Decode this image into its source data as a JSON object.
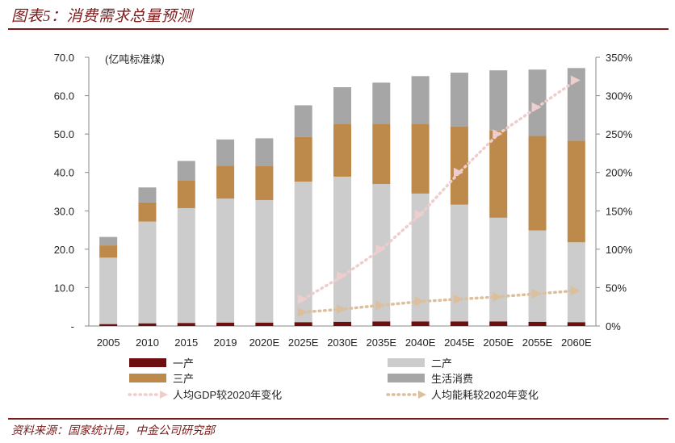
{
  "header": {
    "title": "图表5：消费需求总量预测"
  },
  "footer": {
    "source": "资料来源：国家统计局，中金公司研究部"
  },
  "colors": {
    "accent": "#7a1a1a",
    "primary": "#6e0f0f",
    "secondary": "#cccccc",
    "tertiary": "#bd8a4c",
    "living": "#a6a6a6",
    "gdp_line": "#f0cdcd",
    "energy_line": "#dcbf9d"
  },
  "chart_data": {
    "type": "bar",
    "stacked": true,
    "unit_label": "(亿吨标准煤)",
    "categories": [
      "2005",
      "2010",
      "2015",
      "2019",
      "2020E",
      "2025E",
      "2030E",
      "2035E",
      "2040E",
      "2045E",
      "2050E",
      "2055E",
      "2060E"
    ],
    "y_left": {
      "min": 0,
      "max": 70,
      "ticks": [
        "-",
        "10.0",
        "20.0",
        "30.0",
        "40.0",
        "50.0",
        "60.0",
        "70.0"
      ]
    },
    "y_right": {
      "min": 0,
      "max": 350,
      "ticks": [
        "0%",
        "50%",
        "100%",
        "150%",
        "200%",
        "250%",
        "300%",
        "350%"
      ]
    },
    "series": [
      {
        "name": "一产",
        "color_key": "primary",
        "values": [
          0.5,
          0.7,
          0.8,
          0.9,
          0.9,
          1.0,
          1.1,
          1.2,
          1.2,
          1.2,
          1.2,
          1.1,
          1.0
        ]
      },
      {
        "name": "二产",
        "color_key": "secondary",
        "values": [
          17.3,
          26.5,
          29.9,
          32.3,
          31.9,
          36.6,
          37.8,
          35.8,
          33.3,
          30.4,
          27.0,
          23.8,
          20.8
        ]
      },
      {
        "name": "三产",
        "color_key": "tertiary",
        "values": [
          3.2,
          5.0,
          7.3,
          8.6,
          8.9,
          11.6,
          13.8,
          15.7,
          18.2,
          20.4,
          22.7,
          24.6,
          26.5
        ]
      },
      {
        "name": "生活消费",
        "color_key": "living",
        "values": [
          2.2,
          3.9,
          5.0,
          6.8,
          7.2,
          8.3,
          9.5,
          10.7,
          12.4,
          14.0,
          15.7,
          17.3,
          18.9
        ]
      }
    ],
    "lines": [
      {
        "name": "人均GDP较2020年变化",
        "color_key": "gdp_line",
        "axis": "right",
        "from_category": "2025E",
        "values": [
          35,
          65,
          100,
          145,
          200,
          250,
          285,
          320
        ]
      },
      {
        "name": "人均能耗较2020年变化",
        "color_key": "energy_line",
        "axis": "right",
        "from_category": "2025E",
        "values": [
          18,
          22,
          27,
          32,
          35,
          38,
          42,
          46
        ]
      }
    ]
  }
}
